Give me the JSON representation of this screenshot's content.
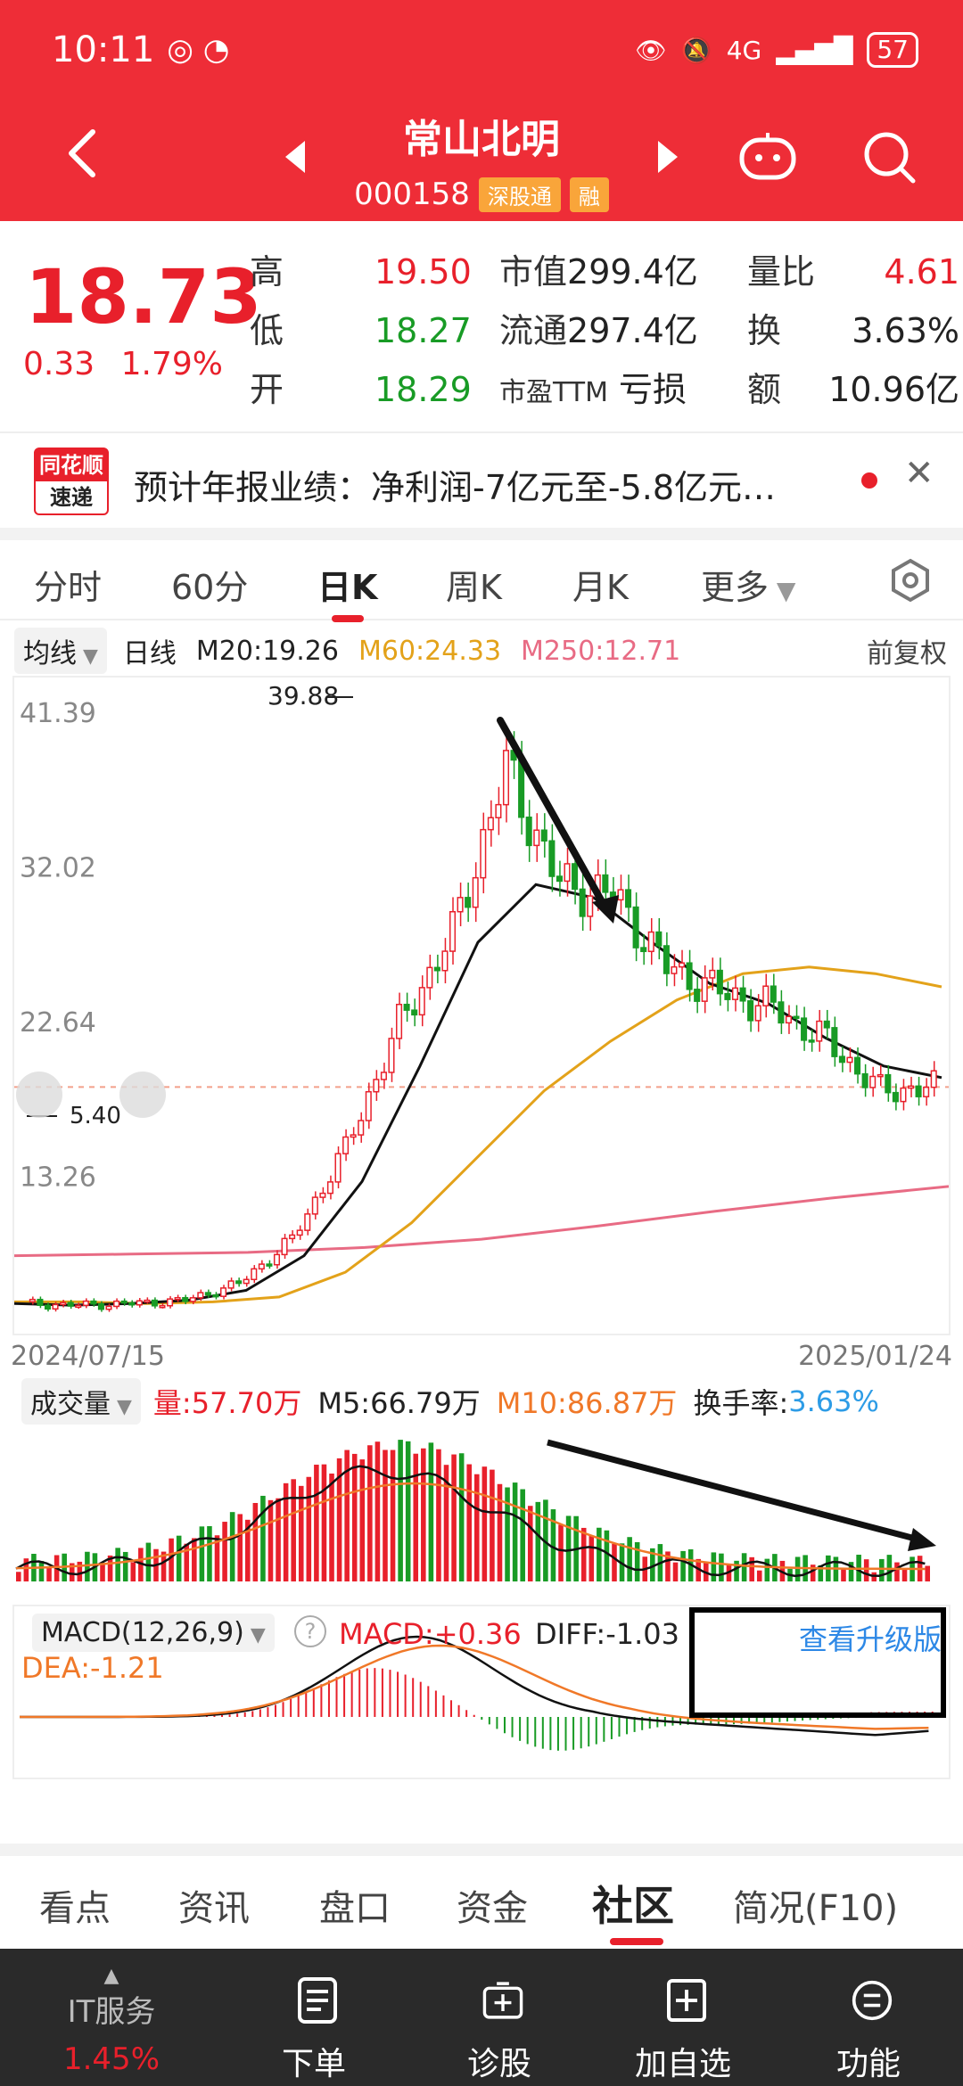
{
  "status_bar": {
    "time": "10:11",
    "network": "4G",
    "battery": "57"
  },
  "header": {
    "stock_name": "常山北明",
    "code": "000158",
    "tag_sgt": "深股通",
    "tag_rong": "融"
  },
  "quote": {
    "price": "18.73",
    "change": "0.33",
    "change_pct": "1.79%",
    "rows": [
      {
        "l1": "高",
        "v1": "19.50",
        "l2": "市值",
        "v2": "299.4亿",
        "l3": "量比",
        "v3": "4.61"
      },
      {
        "l1": "低",
        "v1": "18.27",
        "l2": "流通",
        "v2": "297.4亿",
        "l3": "换",
        "v3": "3.63%"
      },
      {
        "l1": "开",
        "v1": "18.29",
        "l2": "市盈TTM",
        "v2": "亏损",
        "l3": "额",
        "v3": "10.96亿"
      }
    ]
  },
  "news": {
    "logo_top": "同花顺",
    "logo_bottom": "速递",
    "text": "预计年报业绩：净利润-7亿元至-5.8亿元…"
  },
  "kline_tabs": [
    "分时",
    "60分",
    "日K",
    "周K",
    "月K",
    "更多"
  ],
  "ma_line": {
    "avg_label": "均线",
    "period_label": "日线",
    "m20": "M20:19.26",
    "m60": "M60:24.33",
    "m250": "M250:12.71",
    "adjust": "前复权"
  },
  "chart_data": {
    "type": "candlestick",
    "y_ticks": [
      "41.39",
      "32.02",
      "22.64",
      "13.26"
    ],
    "ylim": [
      5.4,
      41.39
    ],
    "high_label": "39.88",
    "low_label": "5.40",
    "start_date": "2024/07/15",
    "end_date": "2025/01/24",
    "ma20": [
      5.6,
      5.5,
      5.6,
      5.8,
      6.4,
      8.5,
      13,
      20,
      27.5,
      31,
      30.2,
      27.5,
      25,
      23.8,
      21.7,
      20,
      19.3
    ],
    "ma60": [
      5.7,
      5.7,
      5.6,
      5.7,
      6.0,
      7.5,
      10.5,
      14.5,
      18.5,
      21.5,
      24,
      25.6,
      26,
      25.6,
      24.8
    ],
    "ma250": [
      8.5,
      8.6,
      8.7,
      9.0,
      9.5,
      10.3,
      11.2,
      12.0,
      12.7
    ],
    "closes": [
      5.6,
      5.5,
      5.6,
      5.8,
      6.8,
      9.5,
      15,
      22.5,
      28,
      38,
      31,
      30.4,
      26,
      24.5,
      23.5,
      21.5,
      18.5,
      18.73
    ]
  },
  "volume": {
    "label": "成交量",
    "amount": "量:57.70万",
    "m5": "M5:66.79万",
    "m10": "M10:86.87万",
    "turnover_label": "换手率:",
    "turnover": "3.63%"
  },
  "macd": {
    "label": "MACD(12,26,9)",
    "macd": "MACD:+0.36",
    "diff": "DIFF:-1.03",
    "dea": "DEA:-1.21",
    "upgrade": "查看升级版"
  },
  "bottom_tabs": [
    "看点",
    "资讯",
    "盘口",
    "资金",
    "社区",
    "简况(F10)"
  ],
  "bottom_bar": {
    "sector": "IT服务",
    "sector_pct": "1.45%",
    "items": [
      "下单",
      "诊股",
      "加自选",
      "功能"
    ]
  }
}
